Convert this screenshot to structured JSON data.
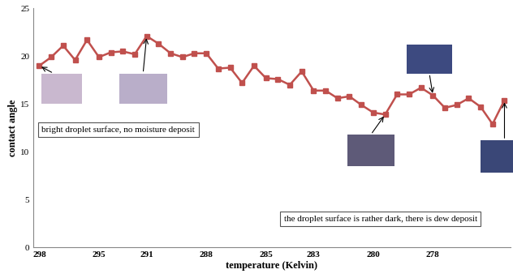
{
  "chart_data": {
    "type": "line",
    "x_label": "temperature (Kelvin)",
    "y_label": "contact angle",
    "categories": [
      "298",
      null,
      null,
      null,
      null,
      "295",
      null,
      null,
      null,
      "291",
      null,
      null,
      null,
      null,
      "288",
      null,
      null,
      null,
      null,
      "285",
      null,
      null,
      null,
      "283",
      null,
      null,
      null,
      null,
      "280",
      null,
      null,
      null,
      null,
      "278",
      null,
      null,
      null,
      null,
      null,
      null
    ],
    "values": [
      19.0,
      19.9,
      21.1,
      19.6,
      21.7,
      19.9,
      20.4,
      20.5,
      20.2,
      22.1,
      21.3,
      20.3,
      19.9,
      20.3,
      20.3,
      18.7,
      18.8,
      17.2,
      19.0,
      17.7,
      17.6,
      17.0,
      18.4,
      16.4,
      16.4,
      15.6,
      15.8,
      14.9,
      14.1,
      13.9,
      16.0,
      16.0,
      16.7,
      15.9,
      14.6,
      14.9,
      15.6,
      14.7,
      12.9,
      15.4
    ],
    "color": "#c0504d",
    "marker": "square",
    "line_style": "solid",
    "ylim": [
      0,
      25
    ],
    "yticks": [
      0,
      5,
      10,
      15,
      20,
      25
    ],
    "grid": false,
    "annotations": [
      "bright droplet surface, no moisture deposit",
      "the droplet surface is rather dark, there is dew deposit"
    ]
  }
}
